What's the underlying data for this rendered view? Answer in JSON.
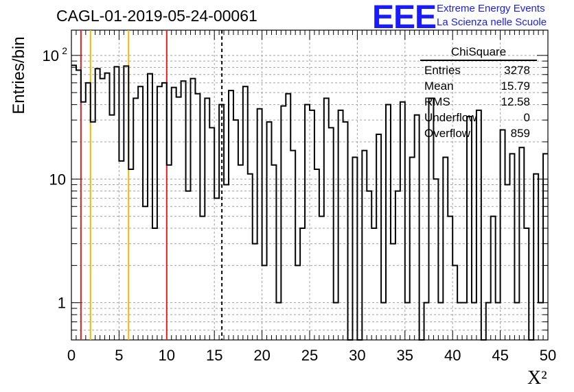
{
  "header": {
    "title": "CAGL-01-2019-05-24-00061",
    "logo_text": "EEE",
    "logo_line1": "Extreme Energy Events",
    "logo_line2": "La Scienza nelle Scuole"
  },
  "stats": {
    "name": "ChiSquare",
    "rows": [
      {
        "label": "Entries",
        "value": "3278"
      },
      {
        "label": "Mean",
        "value": "15.79"
      },
      {
        "label": "RMS",
        "value": "12.58"
      },
      {
        "label": "Underflow",
        "value": "0"
      },
      {
        "label": "Overflow",
        "value": "859"
      }
    ]
  },
  "chart_data": {
    "type": "bar",
    "style": "step-histogram",
    "title": "CAGL-01-2019-05-24-00061",
    "xlabel": "X²",
    "ylabel": "Entries/bin",
    "xlim": [
      0,
      50
    ],
    "ylim": [
      0.5,
      160
    ],
    "yscale": "log",
    "grid": true,
    "bin_width": 0.5,
    "x_ticks": [
      "0",
      "5",
      "10",
      "15",
      "20",
      "25",
      "30",
      "35",
      "40",
      "45",
      "50"
    ],
    "y_ticks": [
      "1",
      "10",
      "10²"
    ],
    "values": [
      83,
      76,
      42,
      60,
      29,
      78,
      65,
      72,
      33,
      81,
      14,
      82,
      12,
      45,
      56,
      6,
      71,
      4,
      56,
      60,
      13,
      55,
      46,
      62,
      8,
      65,
      49,
      5,
      45,
      26,
      7,
      40,
      9,
      52,
      30,
      13,
      56,
      11,
      3,
      37,
      2,
      29,
      13,
      1,
      39,
      49,
      17,
      2,
      4,
      40,
      36,
      12,
      5,
      45,
      26,
      1,
      36,
      29,
      0.3,
      15,
      0.2,
      17,
      8,
      4,
      23,
      1,
      40,
      3,
      8,
      42,
      1,
      15,
      33,
      0.4,
      1,
      45,
      10,
      1,
      15,
      5,
      2,
      1,
      1,
      32,
      1,
      36,
      0.3,
      1,
      5,
      1,
      25,
      9,
      16,
      1,
      18,
      4,
      0.3,
      11,
      1,
      16
    ],
    "reference_lines": [
      {
        "x": 1,
        "color": "#e02020",
        "style": "solid"
      },
      {
        "x": 2,
        "color": "#f0b800",
        "style": "solid"
      },
      {
        "x": 6,
        "color": "#f0b800",
        "style": "solid"
      },
      {
        "x": 10,
        "color": "#e02020",
        "style": "solid"
      },
      {
        "x": 15.79,
        "color": "#000000",
        "style": "dashed"
      }
    ]
  }
}
